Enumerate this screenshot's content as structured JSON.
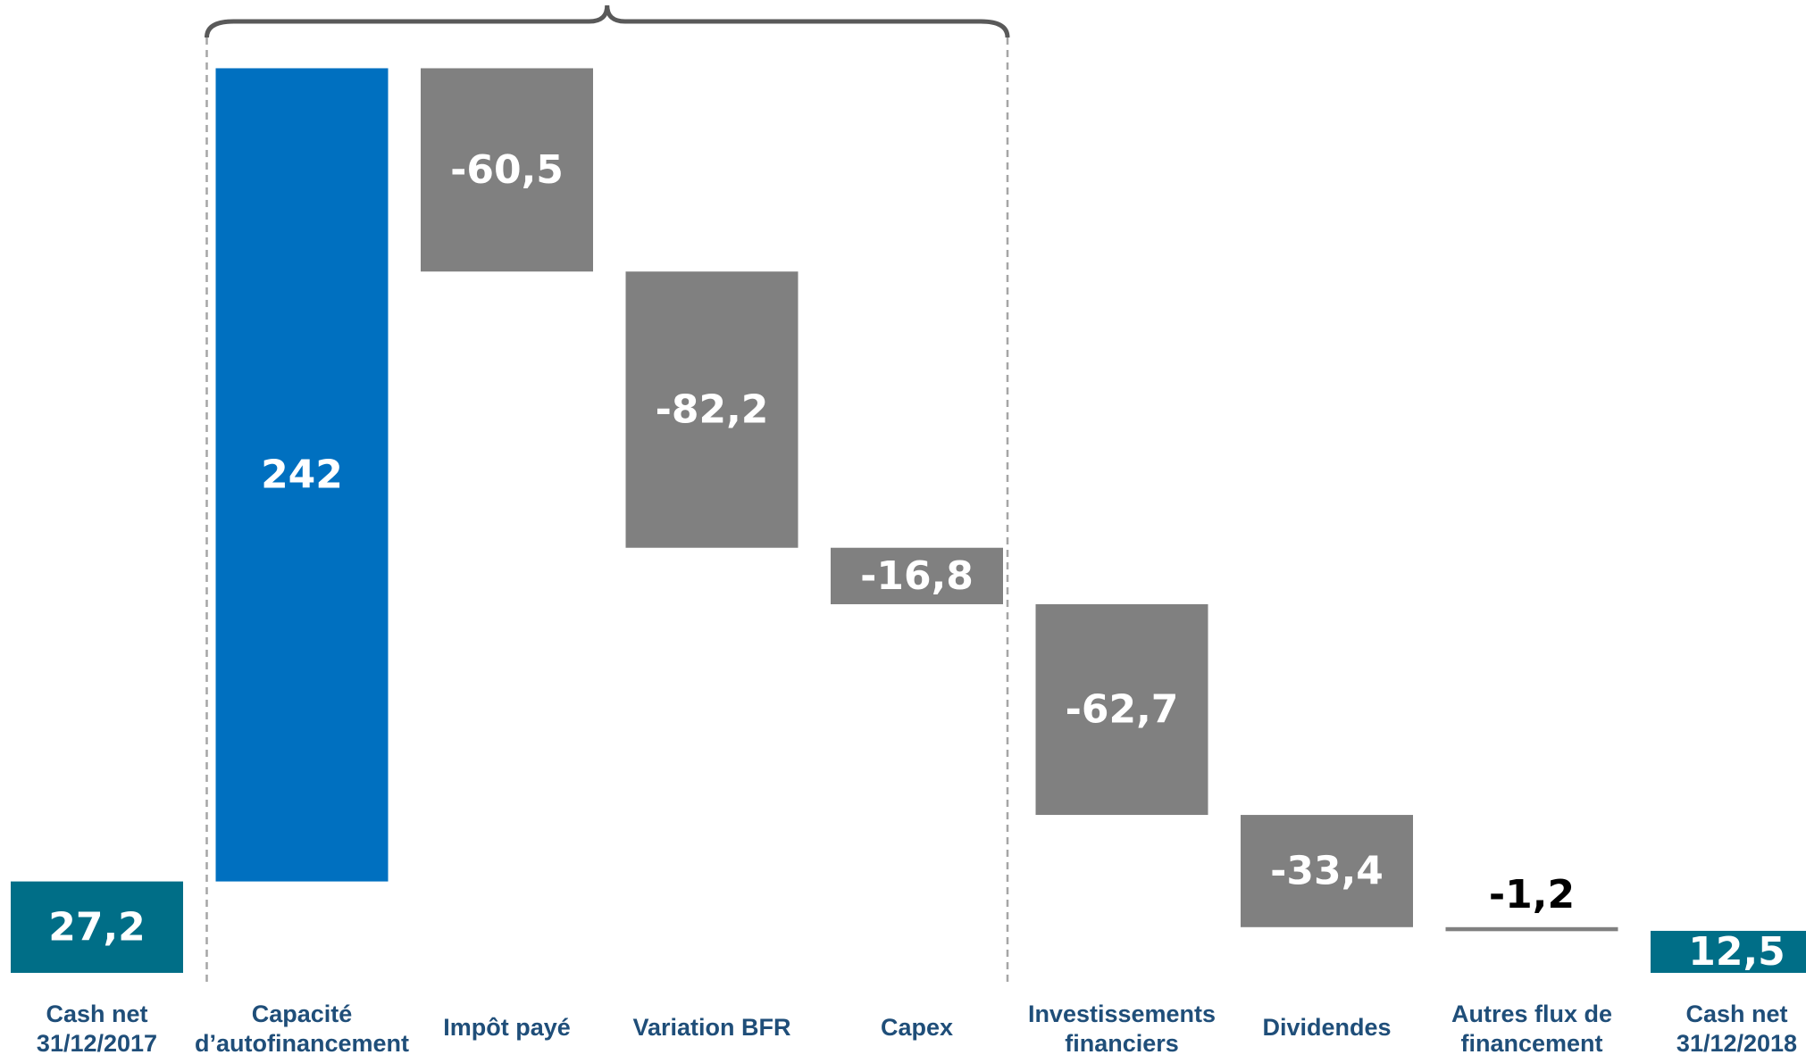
{
  "chart_data": {
    "type": "waterfall",
    "categories": [
      [
        "Cash net",
        "31/12/2017"
      ],
      [
        "Capacité",
        "d’autofinancement"
      ],
      [
        "Impôt payé"
      ],
      [
        "Variation BFR"
      ],
      [
        "Capex"
      ],
      [
        "Investissements",
        "financiers"
      ],
      [
        "Dividendes"
      ],
      [
        "Autres flux de",
        "financement"
      ],
      [
        "Cash net",
        "31/12/2018"
      ]
    ],
    "values": [
      27.2,
      242,
      -60.5,
      -82.2,
      -16.8,
      -62.7,
      -33.4,
      -1.2,
      12.5
    ],
    "value_labels": [
      "27,2",
      "242",
      "-60,5",
      "-82,2",
      "-16,8",
      "-62,7",
      "-33,4",
      "-1,2",
      "12,5"
    ],
    "kinds": [
      "total",
      "delta",
      "delta",
      "delta",
      "delta",
      "delta",
      "delta",
      "delta",
      "total"
    ],
    "colors": {
      "total": "#006e87",
      "positive": "#0070c0",
      "negative": "#808080",
      "category_text": "#1f4e79",
      "bracket": "#595959",
      "divider": "#a6a6a6"
    },
    "bracket_span": [
      1,
      4
    ]
  }
}
